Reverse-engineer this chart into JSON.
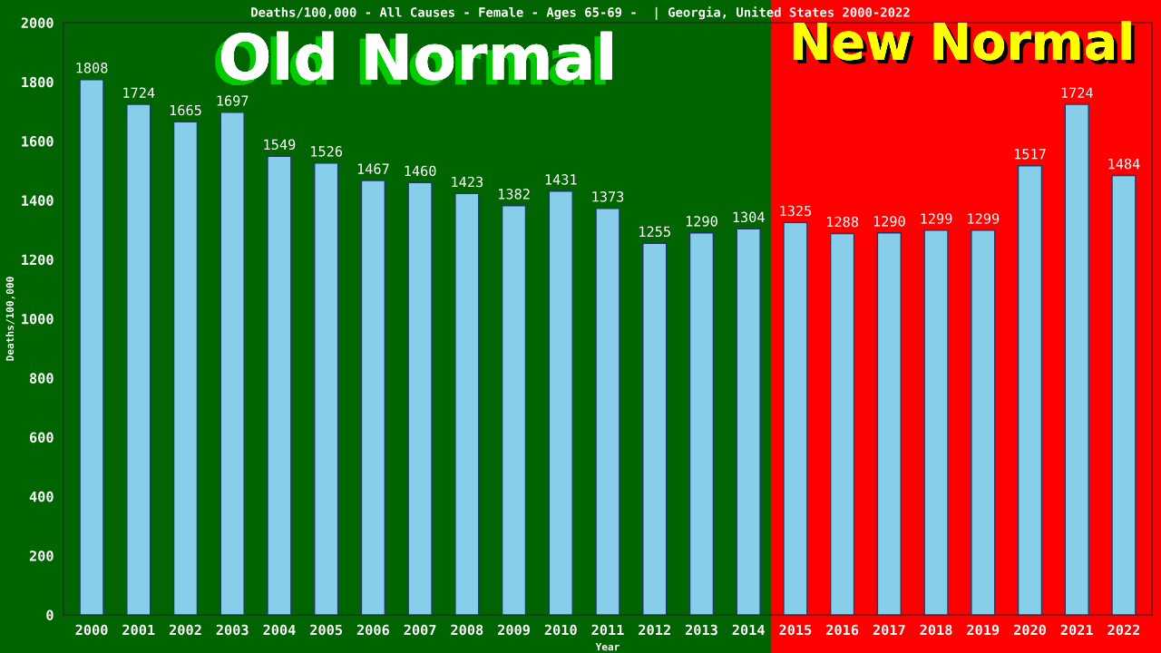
{
  "chart_data": {
    "type": "bar",
    "title": "Deaths/100,000 - All Causes - Female - Ages 65-69 -  | Georgia, United States 2000-2022",
    "xlabel": "Year",
    "ylabel": "Deaths/100,000",
    "categories": [
      "2000",
      "2001",
      "2002",
      "2003",
      "2004",
      "2005",
      "2006",
      "2007",
      "2008",
      "2009",
      "2010",
      "2011",
      "2012",
      "2013",
      "2014",
      "2015",
      "2016",
      "2017",
      "2018",
      "2019",
      "2020",
      "2021",
      "2022"
    ],
    "values": [
      1808,
      1724,
      1665,
      1697,
      1549,
      1526,
      1467,
      1460,
      1423,
      1382,
      1431,
      1373,
      1255,
      1290,
      1304,
      1325,
      1288,
      1290,
      1299,
      1299,
      1517,
      1724,
      1484
    ],
    "color": "#87ceeb",
    "ylim": [
      0,
      2000
    ],
    "yticks": [
      0,
      200,
      400,
      600,
      800,
      1000,
      1200,
      1400,
      1600,
      1800,
      2000
    ],
    "data_labels": true,
    "grid": false,
    "bands": [
      {
        "axis": "x",
        "from": "2000",
        "to": "2014",
        "label": "Old Normal",
        "color": "#006400"
      },
      {
        "axis": "x",
        "from": "2015",
        "to": "2022",
        "label": "New Normal",
        "color": "#ff0000"
      }
    ]
  }
}
